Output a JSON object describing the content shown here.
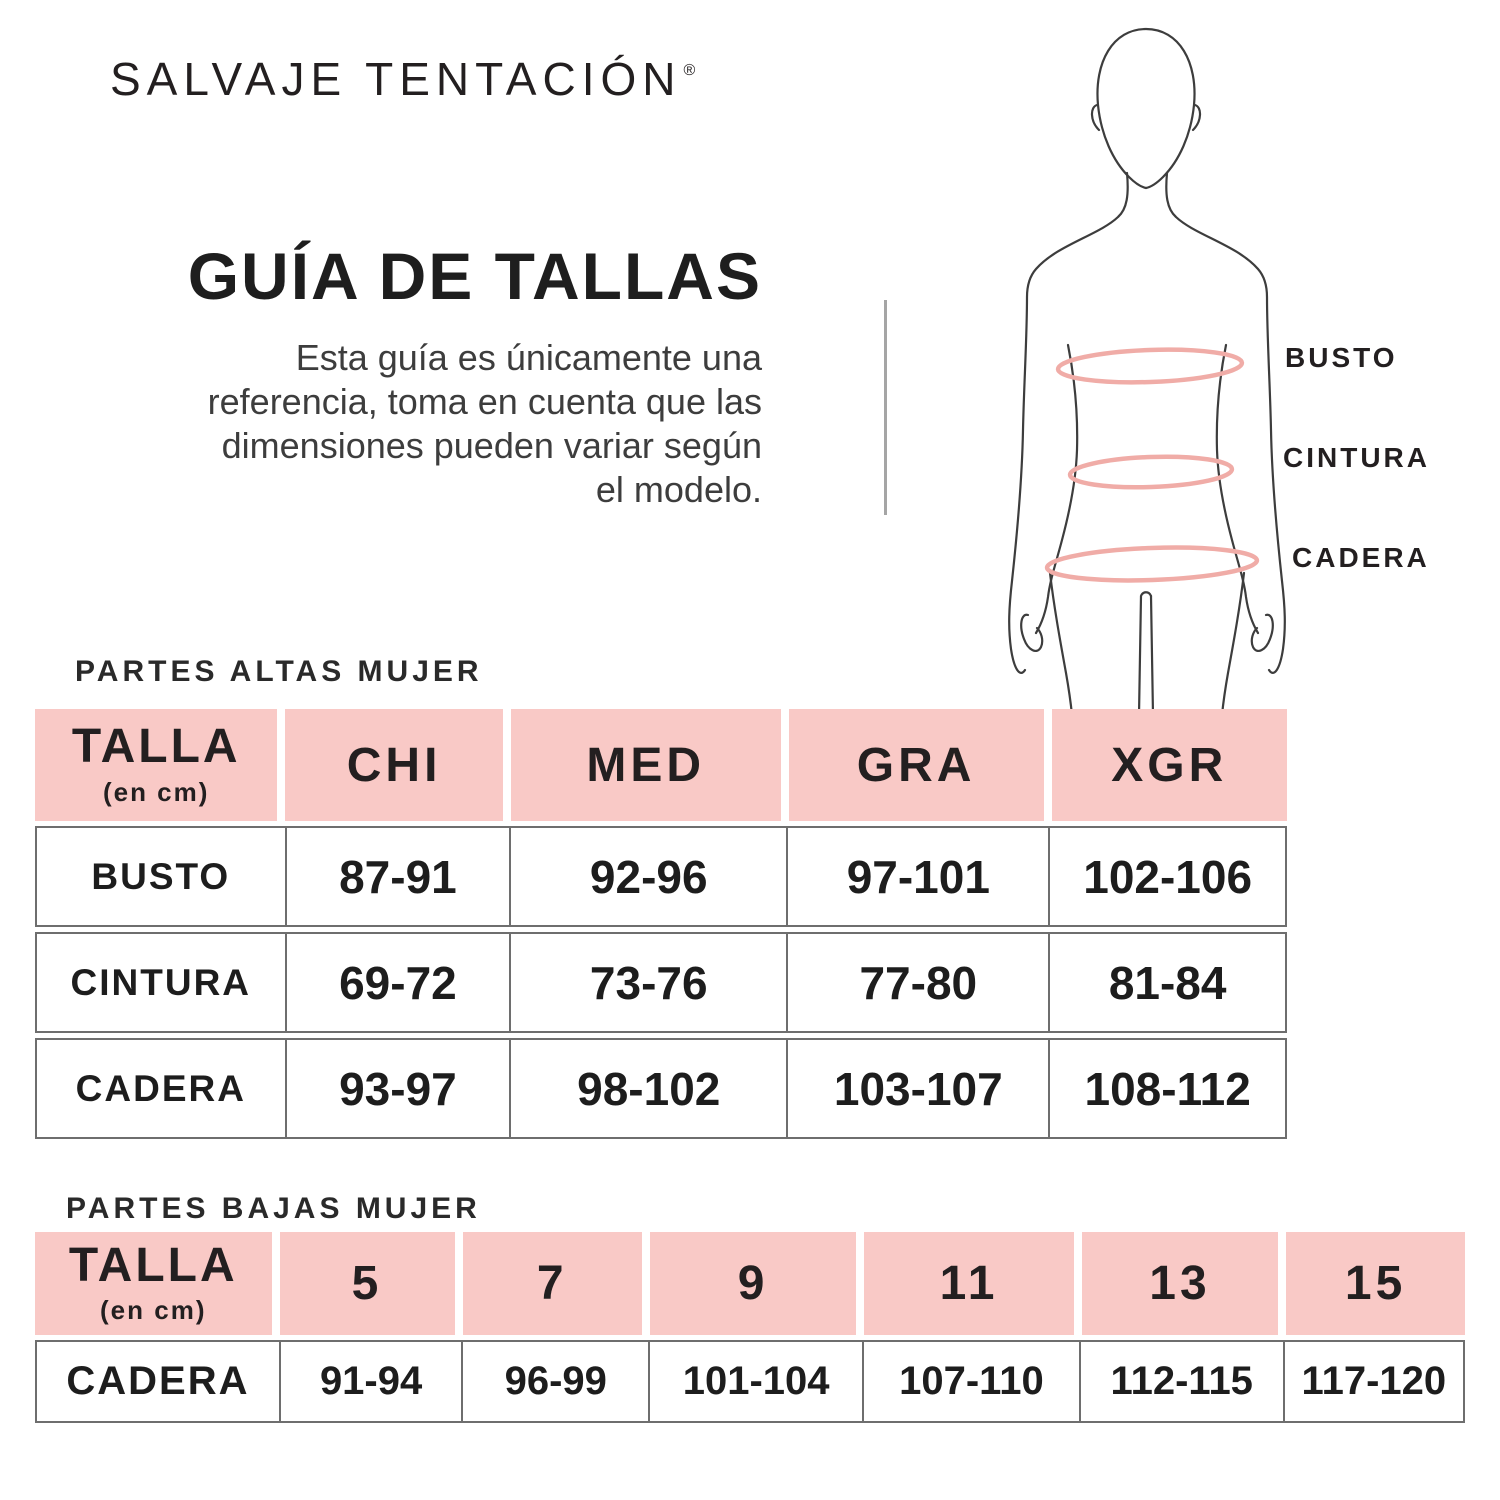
{
  "brand": {
    "name": "SALVAJE TENTACIÓN",
    "mark": "®"
  },
  "guide": {
    "title": "GUÍA DE TALLAS",
    "description_lines": [
      "Esta guía es únicamente una",
      "referencia, toma en cuenta que las",
      "dimensiones pueden variar según",
      "el modelo."
    ]
  },
  "figure": {
    "labels": [
      "BUSTO",
      "CINTURA",
      "CADERA"
    ]
  },
  "tables": {
    "tops": {
      "section_title": "PARTES ALTAS MUJER",
      "header": {
        "talla": "TALLA",
        "unit": "(en cm)",
        "sizes": [
          "CHI",
          "MED",
          "GRA",
          "XGR"
        ]
      },
      "rows": [
        {
          "label": "BUSTO",
          "values": [
            "87-91",
            "92-96",
            "97-101",
            "102-106"
          ]
        },
        {
          "label": "CINTURA",
          "values": [
            "69-72",
            "73-76",
            "77-80",
            "81-84"
          ]
        },
        {
          "label": "CADERA",
          "values": [
            "93-97",
            "98-102",
            "103-107",
            "108-112"
          ]
        }
      ]
    },
    "bottoms": {
      "section_title": "PARTES BAJAS MUJER",
      "header": {
        "talla": "TALLA",
        "unit": "(en cm)",
        "sizes": [
          "5",
          "7",
          "9",
          "11",
          "13",
          "15"
        ]
      },
      "rows": [
        {
          "label": "CADERA",
          "values": [
            "91-94",
            "96-99",
            "101-104",
            "107-110",
            "112-115",
            "117-120"
          ]
        }
      ]
    }
  },
  "colors": {
    "header_pink": "#f9c9c6",
    "ellipse_pink": "#f0aca7",
    "outline_gray": "#3d3d3d",
    "table_line_gray": "#6e6e6e",
    "text_dark": "#231f20"
  }
}
